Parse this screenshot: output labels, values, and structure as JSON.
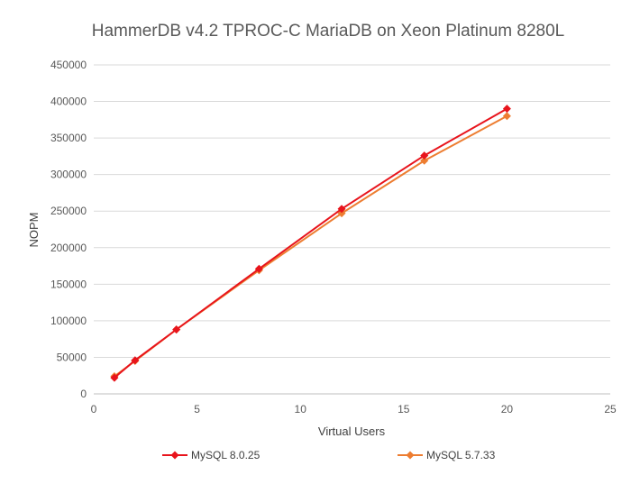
{
  "chart_data": {
    "type": "line",
    "title": "HammerDB v4.2 TPROC-C MariaDB on Xeon Platinum 8280L",
    "xlabel": "Virtual Users",
    "ylabel": "NOPM",
    "xlim": [
      0,
      25
    ],
    "ylim": [
      0,
      450000
    ],
    "x_ticks": [
      "0",
      "5",
      "10",
      "15",
      "20",
      "25"
    ],
    "y_ticks": [
      "0",
      "50000",
      "100000",
      "150000",
      "200000",
      "250000",
      "300000",
      "350000",
      "400000",
      "450000"
    ],
    "grid": "horizontal",
    "legend_position": "bottom",
    "series": [
      {
        "name": "MySQL 8.0.25",
        "color": "#e8141c",
        "marker": "diamond",
        "x": [
          1,
          2,
          4,
          8,
          12,
          16,
          20
        ],
        "y": [
          22000,
          46000,
          88000,
          171000,
          253000,
          326000,
          390000
        ]
      },
      {
        "name": "MySQL 5.7.33",
        "color": "#ed7d31",
        "marker": "diamond",
        "x": [
          1,
          2,
          4,
          8,
          12,
          16,
          20
        ],
        "y": [
          24000,
          45000,
          88000,
          169000,
          247000,
          319000,
          380000
        ]
      }
    ]
  }
}
